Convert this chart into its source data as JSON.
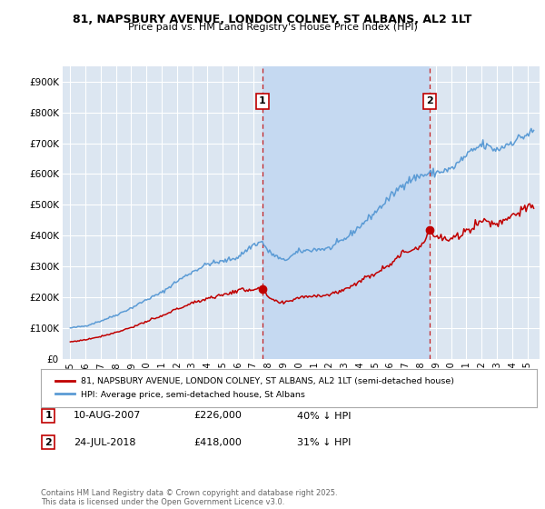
{
  "title_line1": "81, NAPSBURY AVENUE, LONDON COLNEY, ST ALBANS, AL2 1LT",
  "title_line2": "Price paid vs. HM Land Registry's House Price Index (HPI)",
  "ylim": [
    0,
    950000
  ],
  "yticks": [
    0,
    100000,
    200000,
    300000,
    400000,
    500000,
    600000,
    700000,
    800000,
    900000
  ],
  "ytick_labels": [
    "£0",
    "£100K",
    "£200K",
    "£300K",
    "£400K",
    "£500K",
    "£600K",
    "£700K",
    "£800K",
    "£900K"
  ],
  "hpi_color": "#5b9bd5",
  "sale_color": "#c00000",
  "plot_bg_color": "#dce6f1",
  "shade_color": "#c5d9f1",
  "marker1_x": 2007.6,
  "marker1_y": 226000,
  "marker2_x": 2018.56,
  "marker2_y": 418000,
  "vline1_x": 2007.6,
  "vline2_x": 2018.56,
  "legend_line1": "81, NAPSBURY AVENUE, LONDON COLNEY, ST ALBANS, AL2 1LT (semi-detached house)",
  "legend_line2": "HPI: Average price, semi-detached house, St Albans",
  "table_row1": [
    "1",
    "10-AUG-2007",
    "£226,000",
    "40% ↓ HPI"
  ],
  "table_row2": [
    "2",
    "24-JUL-2018",
    "£418,000",
    "31% ↓ HPI"
  ],
  "footnote": "Contains HM Land Registry data © Crown copyright and database right 2025.\nThis data is licensed under the Open Government Licence v3.0.",
  "background_color": "#ffffff",
  "grid_color": "#ffffff",
  "xlim_left": 1994.5,
  "xlim_right": 2025.8
}
